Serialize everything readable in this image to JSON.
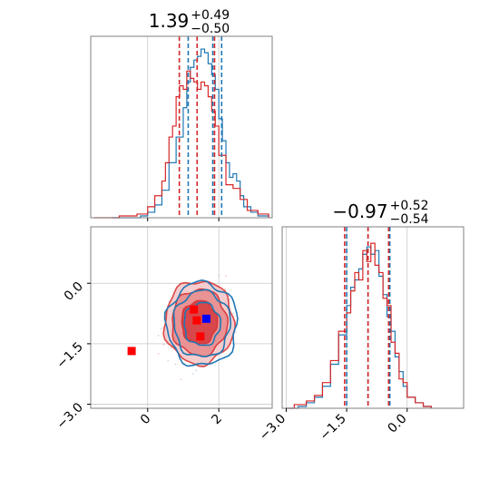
{
  "colors": {
    "series_a": "#1f77b4",
    "series_b": "#d62728",
    "grid": "#c8c8c8",
    "frame": "#808080"
  },
  "chart_data": [
    {
      "type": "histogram",
      "panel": "top-left marginal (param 1)",
      "title_value": "1.39",
      "title_plus": "+0.49",
      "title_minus": "−0.50",
      "xlim": [
        -1.6,
        3.5
      ],
      "grid": true,
      "x_ticks": [
        0,
        2
      ],
      "quantile_lines": {
        "series_a": [
          1.14,
          1.83,
          2.08
        ],
        "series_b": [
          0.89,
          1.39,
          1.88
        ]
      },
      "series": [
        {
          "color_key": "series_a",
          "x": [
            -1.0,
            -0.5,
            -0.2,
            0.0,
            0.2,
            0.4,
            0.6,
            0.8,
            1.0,
            1.1,
            1.2,
            1.3,
            1.4,
            1.5,
            1.6,
            1.7,
            1.8,
            1.9,
            2.0,
            2.1,
            2.2,
            2.3,
            2.4,
            2.5,
            2.6,
            2.7,
            2.9,
            3.1,
            3.4
          ],
          "values": [
            0.0,
            0.0,
            0.01,
            0.03,
            0.07,
            0.15,
            0.3,
            0.44,
            0.6,
            0.74,
            0.82,
            0.86,
            0.88,
            0.92,
            0.9,
            0.84,
            0.78,
            0.7,
            0.54,
            0.42,
            0.3,
            0.22,
            0.24,
            0.2,
            0.12,
            0.06,
            0.03,
            0.01,
            0.0
          ]
        },
        {
          "color_key": "series_b",
          "x": [
            -1.5,
            -0.8,
            -0.3,
            0.0,
            0.2,
            0.4,
            0.5,
            0.6,
            0.7,
            0.8,
            0.9,
            1.0,
            1.1,
            1.2,
            1.3,
            1.4,
            1.5,
            1.6,
            1.7,
            1.8,
            1.9,
            2.0,
            2.2,
            2.4,
            2.6,
            2.8,
            3.1,
            3.4
          ],
          "values": [
            0.0,
            0.01,
            0.02,
            0.06,
            0.12,
            0.2,
            0.3,
            0.44,
            0.5,
            0.66,
            0.72,
            0.7,
            0.8,
            0.76,
            0.74,
            0.7,
            0.74,
            0.72,
            0.66,
            0.58,
            0.5,
            0.34,
            0.18,
            0.16,
            0.1,
            0.04,
            0.02,
            0.0
          ]
        }
      ]
    },
    {
      "type": "contour-scatter",
      "panel": "bottom-left joint (param 1 vs param 2)",
      "xlim": [
        -1.6,
        3.5
      ],
      "ylim": [
        -3.1,
        1.4
      ],
      "grid": true,
      "x_ticks": [
        0,
        2
      ],
      "x_tick_labels": [
        "0",
        "2"
      ],
      "y_ticks": [
        -3.0,
        -1.5,
        0.0
      ],
      "y_tick_labels": [
        "−3.0",
        "−1.5",
        "0.0"
      ],
      "center": [
        1.4,
        -0.97
      ],
      "spread": [
        0.5,
        0.53
      ],
      "contour_levels": [
        {
          "label": "1-sigma",
          "scale": 1.0
        },
        {
          "label": "2-sigma",
          "scale": 1.55
        },
        {
          "label": "3-sigma",
          "scale": 1.95
        }
      ],
      "markers": [
        {
          "color_key": "series_b",
          "x": -0.45,
          "y": -1.68
        },
        {
          "color_key": "series_b",
          "x": 1.3,
          "y": -0.65
        },
        {
          "color_key": "series_b",
          "x": 1.38,
          "y": -0.92
        },
        {
          "color_key": "series_b",
          "x": 1.48,
          "y": -1.32
        },
        {
          "color_key": "series_a",
          "x": 1.65,
          "y": -0.88
        }
      ]
    },
    {
      "type": "histogram",
      "panel": "bottom-right marginal (param 2)",
      "title_value": "−0.97",
      "title_plus": "+0.52",
      "title_minus": "−0.54",
      "xlim": [
        -3.1,
        1.4
      ],
      "grid": true,
      "x_ticks": [
        -3.0,
        -1.5,
        0.0
      ],
      "x_tick_labels": [
        "−3.0",
        "−1.5",
        "0.0"
      ],
      "quantile_lines": {
        "series_a": [
          -1.5,
          -0.97,
          -0.43
        ],
        "series_b": [
          -1.55,
          -0.97,
          -0.46
        ]
      },
      "series": [
        {
          "color_key": "series_a",
          "x": [
            -3.0,
            -2.7,
            -2.5,
            -2.3,
            -2.1,
            -1.9,
            -1.7,
            -1.5,
            -1.4,
            -1.3,
            -1.2,
            -1.1,
            -1.0,
            -0.9,
            -0.8,
            -0.7,
            -0.6,
            -0.5,
            -0.4,
            -0.3,
            -0.2,
            -0.1,
            0.0,
            0.2,
            0.4,
            0.6
          ],
          "values": [
            0.0,
            0.01,
            0.03,
            0.06,
            0.12,
            0.24,
            0.4,
            0.56,
            0.66,
            0.7,
            0.76,
            0.84,
            0.88,
            0.84,
            0.86,
            0.72,
            0.62,
            0.5,
            0.42,
            0.28,
            0.2,
            0.12,
            0.06,
            0.03,
            0.01,
            0.0
          ]
        },
        {
          "color_key": "series_b",
          "x": [
            -3.0,
            -2.8,
            -2.5,
            -2.3,
            -2.1,
            -1.9,
            -1.7,
            -1.5,
            -1.4,
            -1.3,
            -1.2,
            -1.1,
            -1.0,
            -0.9,
            -0.8,
            -0.7,
            -0.6,
            -0.5,
            -0.4,
            -0.3,
            -0.2,
            -0.1,
            0.0,
            0.2,
            0.4,
            0.6
          ],
          "values": [
            0.0,
            0.02,
            0.04,
            0.07,
            0.14,
            0.26,
            0.42,
            0.52,
            0.64,
            0.74,
            0.7,
            0.86,
            0.8,
            0.9,
            0.78,
            0.74,
            0.6,
            0.56,
            0.36,
            0.3,
            0.16,
            0.14,
            0.06,
            0.03,
            0.01,
            0.0
          ]
        }
      ]
    }
  ]
}
